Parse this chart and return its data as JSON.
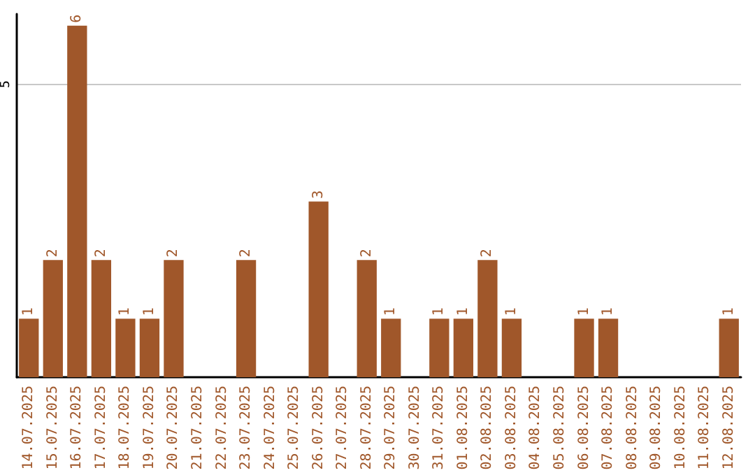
{
  "chart_data": {
    "type": "bar",
    "categories": [
      "14.07.2025",
      "15.07.2025",
      "16.07.2025",
      "17.07.2025",
      "18.07.2025",
      "19.07.2025",
      "20.07.2025",
      "21.07.2025",
      "22.07.2025",
      "23.07.2025",
      "24.07.2025",
      "25.07.2025",
      "26.07.2025",
      "27.07.2025",
      "28.07.2025",
      "29.07.2025",
      "30.07.2025",
      "31.07.2025",
      "01.08.2025",
      "02.08.2025",
      "03.08.2025",
      "04.08.2025",
      "05.08.2025",
      "06.08.2025",
      "07.08.2025",
      "08.08.2025",
      "09.08.2025",
      "10.08.2025",
      "11.08.2025",
      "12.08.2025"
    ],
    "values": [
      1,
      2,
      6,
      2,
      1,
      1,
      2,
      0,
      0,
      2,
      0,
      0,
      3,
      0,
      2,
      1,
      0,
      1,
      1,
      2,
      1,
      0,
      0,
      1,
      1,
      0,
      0,
      0,
      0,
      1
    ],
    "value_labels": [
      "1",
      "2",
      "6",
      "2",
      "1",
      "1",
      "2",
      null,
      null,
      "2",
      null,
      null,
      "3",
      null,
      "2",
      "1",
      null,
      "1",
      "1",
      "2",
      "1",
      null,
      null,
      "1",
      "1",
      null,
      null,
      null,
      null,
      "1"
    ],
    "color": "#a0572a",
    "ylim": [
      0,
      6.2
    ],
    "yticks": [
      5
    ],
    "grid": "y"
  }
}
